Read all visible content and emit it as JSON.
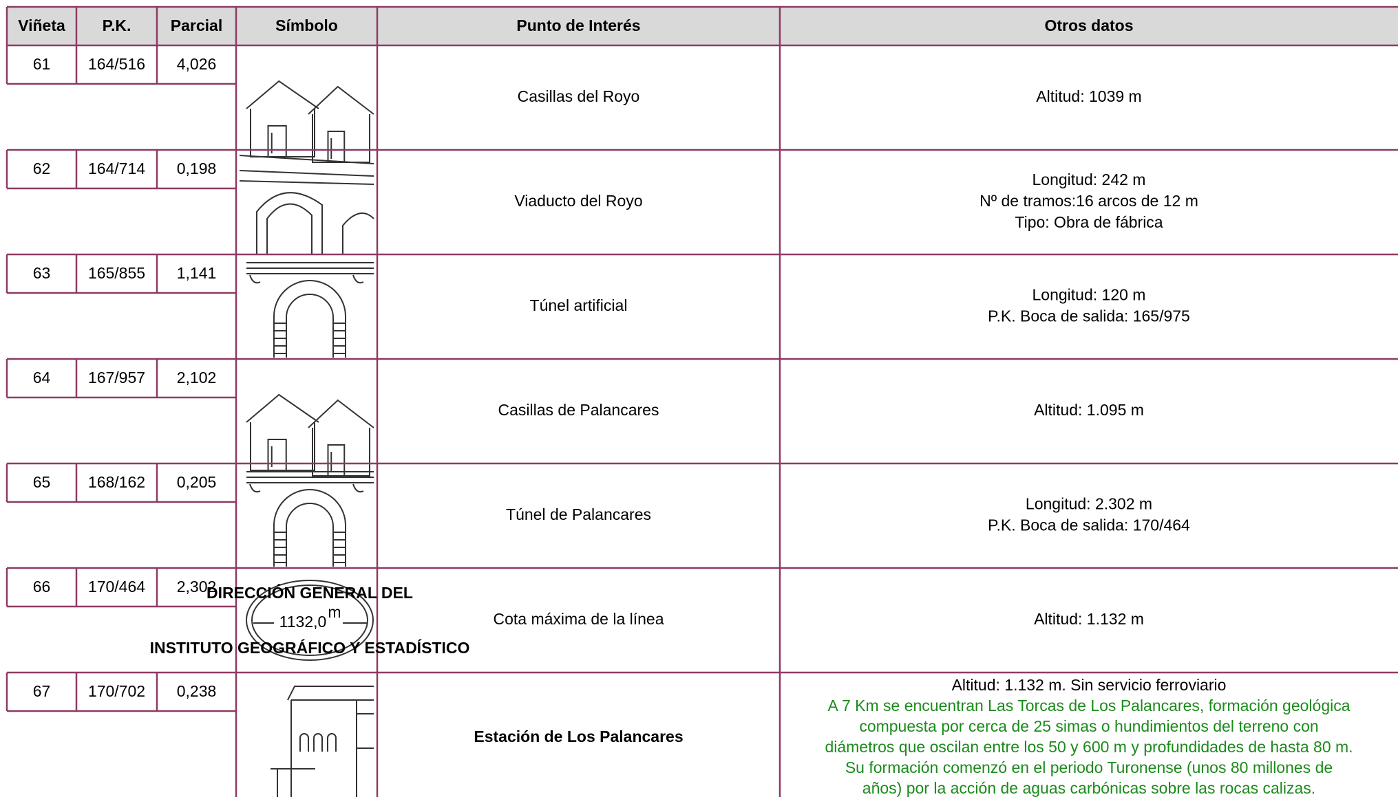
{
  "table": {
    "columns": [
      "Viñeta",
      "P.K.",
      "Parcial",
      "Símbolo",
      "Punto de Interés",
      "Otros datos"
    ],
    "rows": [
      {
        "vineta": "61",
        "pk": "164/516",
        "parcial": "4,026",
        "punto": "Casillas del Royo",
        "otros": [
          "Altitud: 1039 m"
        ]
      },
      {
        "vineta": "62",
        "pk": "164/714",
        "parcial": "0,198",
        "punto": "Viaducto del Royo",
        "otros": [
          "Longitud: 242 m",
          "Nº de tramos:16 arcos de 12 m",
          "Tipo: Obra de fábrica"
        ]
      },
      {
        "vineta": "63",
        "pk": "165/855",
        "parcial": "1,141",
        "punto": "Túnel artificial",
        "otros": [
          "Longitud: 120 m",
          "P.K. Boca de salida: 165/975"
        ]
      },
      {
        "vineta": "64",
        "pk": "167/957",
        "parcial": "2,102",
        "punto": "Casillas de Palancares",
        "otros": [
          "Altitud: 1.095 m"
        ]
      },
      {
        "vineta": "65",
        "pk": "168/162",
        "parcial": "0,205",
        "punto": "Túnel de Palancares",
        "otros": [
          "Longitud: 2.302 m",
          "P.K. Boca de salida: 170/464"
        ]
      },
      {
        "vineta": "66",
        "pk": "170/464",
        "parcial": "2,302",
        "punto": "Cota máxima de la línea",
        "otros": [
          "Altitud: 1.132 m"
        ],
        "symbol_text": {
          "top": "DIRECCIÓN GENERAL DEL",
          "value": "1132,0",
          "unit": "m",
          "bottom": "INSTITUTO GEOGRÁFICO Y ESTADÍSTICO"
        }
      },
      {
        "vineta": "67",
        "pk": "170/702",
        "parcial": "0,238",
        "punto": "Estación de Los Palancares",
        "otros": [
          "Altitud: 1.132 m. Sin servicio ferroviario"
        ],
        "notes": [
          "A 7 Km se encuentran Las Torcas de Los Palancares, formación geológica",
          "compuesta por cerca de 25 simas o hundimientos del terreno con",
          "diámetros que oscilan entre los 50 y 600 m y profundidades de hasta 80 m.",
          "Su formación comenzó en el periodo Turonense (unos 80 millones de",
          "años) por la acción de aguas carbónicas sobre las rocas calizas."
        ]
      }
    ]
  }
}
